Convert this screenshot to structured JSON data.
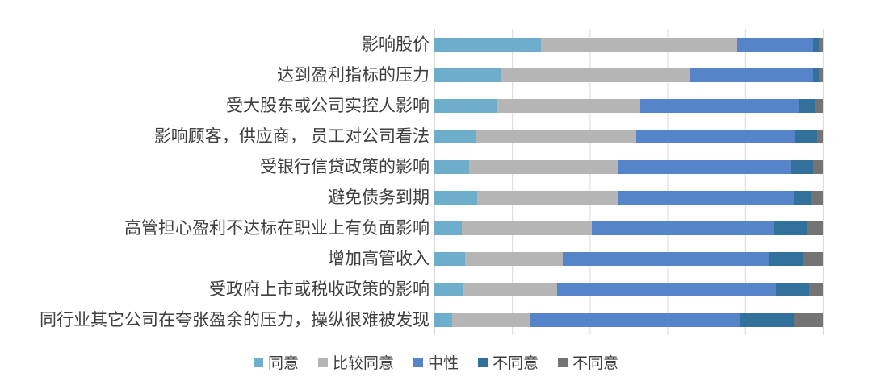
{
  "chart_data": {
    "type": "bar",
    "orientation": "horizontal",
    "stacked": true,
    "unit": "percent",
    "xlim": [
      0,
      100
    ],
    "gridlines": {
      "show": true,
      "interval_percent": 20,
      "color": "#d9d9d9"
    },
    "legend_position": "bottom",
    "categories": [
      "影响股价",
      "达到盈利指标的压力",
      "受大股东或公司实控人影响",
      "影响顾客，供应商， 员工对公司看法",
      "受银行信贷政策的影响",
      "避免债务到期",
      "高管担心盈利不达标在职业上有负面影响",
      "增加高管收入",
      "受政府上市或税收政策的影响",
      "同行业其它公司在夸张盈余的压力，操纵很难被发现"
    ],
    "series": [
      {
        "name": "同意",
        "color": "#6fadcc",
        "values": [
          27.5,
          17.0,
          16.0,
          10.5,
          9.0,
          11.0,
          7.0,
          8.0,
          7.5,
          4.5
        ]
      },
      {
        "name": "比较同意",
        "color": "#b5b5b5",
        "values": [
          50.5,
          49.0,
          37.0,
          41.5,
          38.5,
          36.5,
          33.5,
          25.0,
          24.0,
          20.0
        ]
      },
      {
        "name": "中性",
        "color": "#5585c8",
        "values": [
          19.5,
          31.5,
          41.0,
          41.0,
          44.5,
          45.0,
          47.0,
          53.0,
          56.5,
          54.0
        ]
      },
      {
        "name": "不同意",
        "color": "#31719c",
        "values": [
          1.5,
          1.5,
          4.0,
          5.5,
          5.5,
          4.5,
          8.5,
          9.0,
          8.5,
          14.0
        ]
      },
      {
        "name": "不同意",
        "color": "#747474",
        "values": [
          1.0,
          1.0,
          2.0,
          1.5,
          2.5,
          3.0,
          4.0,
          5.0,
          3.5,
          7.5
        ]
      }
    ]
  },
  "colors": {
    "background": "#ffffff",
    "gridline": "#d9d9d9",
    "label_text": "#3f3f3f",
    "agree": "#6fadcc",
    "somewhat_agree": "#b5b5b5",
    "neutral": "#5585c8",
    "disagree_blue": "#31719c",
    "disagree_gray": "#747474"
  }
}
